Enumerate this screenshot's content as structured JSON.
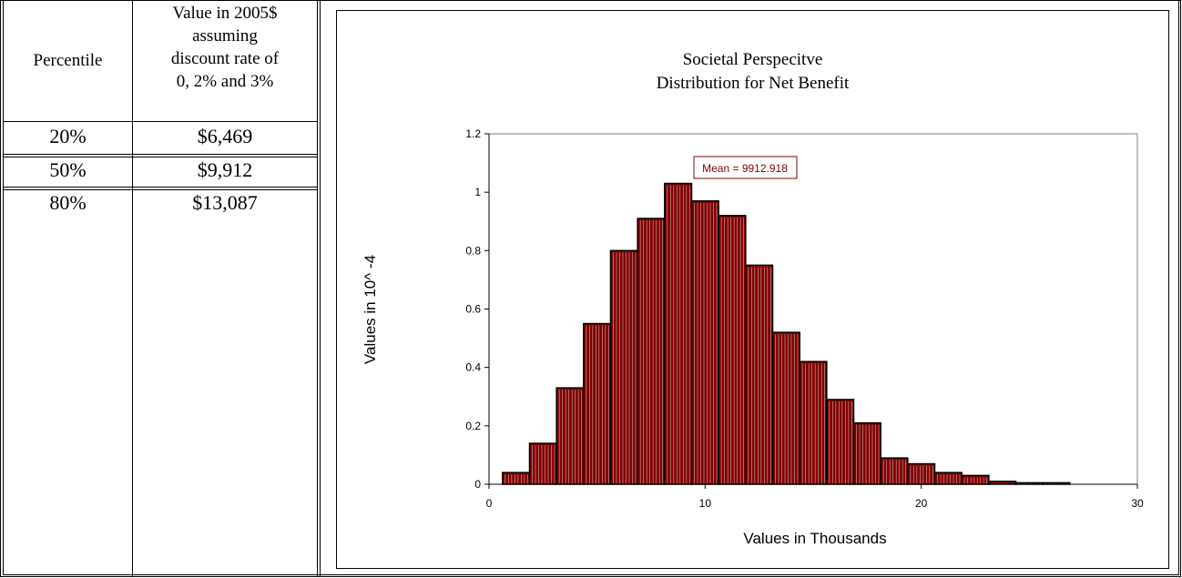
{
  "table": {
    "header_percentile": "Percentile",
    "header_value_lines": [
      "Value in 2005$",
      "assuming",
      "discount rate of",
      "0, 2% and 3%"
    ],
    "rows": [
      {
        "percentile": "20%",
        "value": "$6,469"
      },
      {
        "percentile": "50%",
        "value": "$9,912"
      },
      {
        "percentile": "80%",
        "value": "$13,087"
      }
    ]
  },
  "chart_data": {
    "type": "bar",
    "title_lines": [
      "Societal Perspecitve",
      "Distribution for Net Benefit"
    ],
    "xlabel": "Values in Thousands",
    "ylabel": "Values in 10^ -4",
    "xlim": [
      0,
      30
    ],
    "ylim": [
      0,
      1.2
    ],
    "x_ticks": [
      "0",
      "10",
      "20",
      "30"
    ],
    "y_ticks": [
      "0",
      "0.2",
      "0.4",
      "0.6",
      "0.8",
      "1",
      "1.2"
    ],
    "bar_width": 1.25,
    "x": [
      1.25,
      2.5,
      3.75,
      5.0,
      6.25,
      7.5,
      8.75,
      10.0,
      11.25,
      12.5,
      13.75,
      15.0,
      16.25,
      17.5,
      18.75,
      20.0,
      21.25,
      22.5,
      23.75,
      25.0,
      26.25
    ],
    "values": [
      0.04,
      0.14,
      0.33,
      0.55,
      0.8,
      0.91,
      1.03,
      0.97,
      0.92,
      0.75,
      0.52,
      0.42,
      0.29,
      0.21,
      0.09,
      0.07,
      0.04,
      0.03,
      0.01,
      0.005,
      0.005
    ],
    "bar_color": "#800000",
    "annotation": "Mean = 9912.918",
    "annotation_color": "#800000"
  }
}
